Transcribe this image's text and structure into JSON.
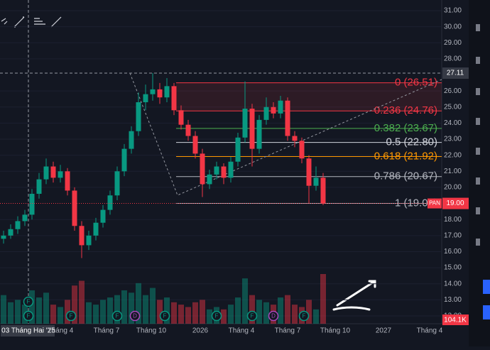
{
  "price_axis": {
    "ticks": [
      {
        "value": 31,
        "label": "31.00"
      },
      {
        "value": 30,
        "label": "30.00"
      },
      {
        "value": 29,
        "label": "29.00"
      },
      {
        "value": 28,
        "label": "28.00"
      },
      {
        "value": 26,
        "label": "26.00"
      },
      {
        "value": 25,
        "label": "25.00"
      },
      {
        "value": 24,
        "label": "24.00"
      },
      {
        "value": 23,
        "label": "23.00"
      },
      {
        "value": 22,
        "label": "22.00"
      },
      {
        "value": 21,
        "label": "21.00"
      },
      {
        "value": 20,
        "label": "20.00"
      },
      {
        "value": 18,
        "label": "18.00"
      },
      {
        "value": 17,
        "label": "17.00"
      },
      {
        "value": 16,
        "label": "16.00"
      },
      {
        "value": 15,
        "label": "15.00"
      },
      {
        "value": 14,
        "label": "14.00"
      },
      {
        "value": 13,
        "label": "13.00"
      },
      {
        "value": 12,
        "label": "12.00"
      }
    ],
    "crosshair_tag": {
      "value": 27.11,
      "label": "27.11"
    },
    "last_price_tag": {
      "value": 19,
      "label": "19.00",
      "symbol": "PAN"
    },
    "volume_tag": "104.1K"
  },
  "time_axis": {
    "labels": [
      "03 Tháng Hai '25",
      "Tháng 4",
      "Tháng 7",
      "Tháng 10",
      "2026",
      "Tháng 4",
      "Tháng 7",
      "Tháng 10",
      "2027",
      "Tháng 4"
    ]
  },
  "fibonacci": [
    {
      "label": "0 (26.51)",
      "price": 26.51,
      "color": "#f23645"
    },
    {
      "label": "0.236 (24.76)",
      "price": 24.76,
      "color": "#f23645"
    },
    {
      "label": "0.382 (23.67)",
      "price": 23.67,
      "color": "#4caf50"
    },
    {
      "label": "0.5 (22.80)",
      "price": 22.8,
      "color": "#d1d4dc"
    },
    {
      "label": "0.618 (21.92)",
      "price": 21.92,
      "color": "#ff9800"
    },
    {
      "label": "0.786 (20.67)",
      "price": 20.67,
      "color": "#b2b5be"
    },
    {
      "label": "1 (19.00)",
      "price": 19,
      "color": "#b2b5be"
    }
  ],
  "candles": [
    [
      16.8,
      17.3,
      16.5,
      17.0
    ],
    [
      17.0,
      17.7,
      16.8,
      17.4
    ],
    [
      17.4,
      18.2,
      17.1,
      17.9
    ],
    [
      17.9,
      18.6,
      17.6,
      18.3
    ],
    [
      18.3,
      19.9,
      18.0,
      19.6
    ],
    [
      19.6,
      20.9,
      19.3,
      20.5
    ],
    [
      20.5,
      21.8,
      20.2,
      21.3
    ],
    [
      21.3,
      21.6,
      20.3,
      20.6
    ],
    [
      20.6,
      21.4,
      20.3,
      21.0
    ],
    [
      21.0,
      21.2,
      19.5,
      19.8
    ],
    [
      19.8,
      20.0,
      17.3,
      17.6
    ],
    [
      17.6,
      17.9,
      15.6,
      16.4
    ],
    [
      16.4,
      17.3,
      16.1,
      17.0
    ],
    [
      17.0,
      18.1,
      16.7,
      17.8
    ],
    [
      17.8,
      18.9,
      17.5,
      18.6
    ],
    [
      18.6,
      19.8,
      18.3,
      19.5
    ],
    [
      19.5,
      21.3,
      19.2,
      21.0
    ],
    [
      21.0,
      22.7,
      20.7,
      22.4
    ],
    [
      22.4,
      23.8,
      22.1,
      23.5
    ],
    [
      23.5,
      25.9,
      23.2,
      25.3
    ],
    [
      25.3,
      26.4,
      24.8,
      25.8
    ],
    [
      25.8,
      27.11,
      25.4,
      26.1
    ],
    [
      26.1,
      26.5,
      25.2,
      25.6
    ],
    [
      25.6,
      26.8,
      25.3,
      26.3
    ],
    [
      26.3,
      26.5,
      24.5,
      24.8
    ],
    [
      24.8,
      25.1,
      23.6,
      23.9
    ],
    [
      23.9,
      24.2,
      22.9,
      23.2
    ],
    [
      23.2,
      23.5,
      21.8,
      22.1
    ],
    [
      22.1,
      22.4,
      19.4,
      20.2
    ],
    [
      20.2,
      21.1,
      19.9,
      20.8
    ],
    [
      20.8,
      21.6,
      20.5,
      21.3
    ],
    [
      21.3,
      21.5,
      20.2,
      20.6
    ],
    [
      20.6,
      21.9,
      20.3,
      21.6
    ],
    [
      21.6,
      23.4,
      21.3,
      23.1
    ],
    [
      23.1,
      26.6,
      22.8,
      24.9
    ],
    [
      24.9,
      25.2,
      21.3,
      22.4
    ],
    [
      22.4,
      24.5,
      22.1,
      24.2
    ],
    [
      24.2,
      25.6,
      23.9,
      25.0
    ],
    [
      25.0,
      25.3,
      24.3,
      24.6
    ],
    [
      24.6,
      25.7,
      24.3,
      25.4
    ],
    [
      25.4,
      25.6,
      22.9,
      23.2
    ],
    [
      23.2,
      23.5,
      22.5,
      22.9
    ],
    [
      22.9,
      23.1,
      21.5,
      21.8
    ],
    [
      21.8,
      22.0,
      19.0,
      20.1
    ],
    [
      20.1,
      21.3,
      19.8,
      20.6
    ],
    [
      20.6,
      20.9,
      18.9,
      19.0
    ]
  ],
  "volumes": [
    60,
    45,
    50,
    40,
    70,
    55,
    65,
    40,
    35,
    50,
    80,
    90,
    45,
    40,
    50,
    55,
    60,
    70,
    65,
    85,
    60,
    75,
    50,
    55,
    45,
    40,
    35,
    45,
    50,
    30,
    35,
    30,
    40,
    55,
    95,
    60,
    50,
    45,
    40,
    55,
    60,
    40,
    35,
    50,
    30,
    104.1
  ],
  "events": [
    "F",
    "F",
    "F",
    "F",
    "D",
    "F",
    "F",
    "F",
    "D",
    "F"
  ]
}
